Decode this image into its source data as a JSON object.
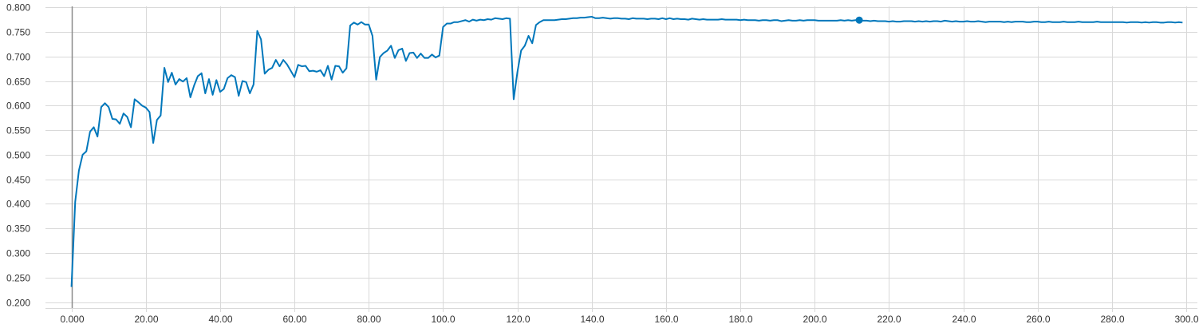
{
  "chart_data": {
    "type": "line",
    "title": "",
    "xlabel": "",
    "ylabel": "",
    "xlim": [
      -7,
      303
    ],
    "ylim": [
      0.188,
      0.802
    ],
    "grid": true,
    "legend": "none",
    "x_ticks": [
      0,
      20,
      40,
      60,
      80,
      100,
      120,
      140,
      160,
      180,
      200,
      220,
      240,
      260,
      280,
      300
    ],
    "x_tick_labels": [
      "0.000",
      "20.00",
      "40.00",
      "60.00",
      "80.00",
      "100.0",
      "120.0",
      "140.0",
      "160.0",
      "180.0",
      "200.0",
      "220.0",
      "240.0",
      "260.0",
      "280.0",
      "300.0"
    ],
    "y_ticks": [
      0.2,
      0.25,
      0.3,
      0.35,
      0.4,
      0.45,
      0.5,
      0.55,
      0.6,
      0.65,
      0.7,
      0.75,
      0.8
    ],
    "y_tick_labels": [
      "0.200",
      "0.250",
      "0.300",
      "0.350",
      "0.400",
      "0.450",
      "0.500",
      "0.550",
      "0.600",
      "0.650",
      "0.700",
      "0.750",
      "0.800"
    ],
    "series": [
      {
        "color": "#0077bb",
        "highlight_point": [
          212,
          0.774
        ],
        "points": [
          [
            0,
            0.231
          ],
          [
            1,
            0.404
          ],
          [
            2,
            0.468
          ],
          [
            3,
            0.5
          ],
          [
            4,
            0.507
          ],
          [
            5,
            0.547
          ],
          [
            6,
            0.556
          ],
          [
            7,
            0.537
          ],
          [
            8,
            0.597
          ],
          [
            9,
            0.605
          ],
          [
            10,
            0.597
          ],
          [
            11,
            0.573
          ],
          [
            12,
            0.572
          ],
          [
            13,
            0.563
          ],
          [
            14,
            0.584
          ],
          [
            15,
            0.577
          ],
          [
            16,
            0.556
          ],
          [
            17,
            0.613
          ],
          [
            18,
            0.607
          ],
          [
            19,
            0.6
          ],
          [
            20,
            0.596
          ],
          [
            21,
            0.587
          ],
          [
            22,
            0.524
          ],
          [
            23,
            0.571
          ],
          [
            24,
            0.58
          ],
          [
            25,
            0.677
          ],
          [
            26,
            0.648
          ],
          [
            27,
            0.667
          ],
          [
            28,
            0.643
          ],
          [
            29,
            0.654
          ],
          [
            30,
            0.649
          ],
          [
            31,
            0.656
          ],
          [
            32,
            0.617
          ],
          [
            33,
            0.641
          ],
          [
            34,
            0.66
          ],
          [
            35,
            0.666
          ],
          [
            36,
            0.625
          ],
          [
            37,
            0.654
          ],
          [
            38,
            0.622
          ],
          [
            39,
            0.652
          ],
          [
            40,
            0.628
          ],
          [
            41,
            0.634
          ],
          [
            42,
            0.656
          ],
          [
            43,
            0.662
          ],
          [
            44,
            0.658
          ],
          [
            45,
            0.62
          ],
          [
            46,
            0.65
          ],
          [
            47,
            0.648
          ],
          [
            48,
            0.625
          ],
          [
            49,
            0.643
          ],
          [
            50,
            0.752
          ],
          [
            51,
            0.735
          ],
          [
            52,
            0.665
          ],
          [
            53,
            0.673
          ],
          [
            54,
            0.677
          ],
          [
            55,
            0.693
          ],
          [
            56,
            0.68
          ],
          [
            57,
            0.693
          ],
          [
            58,
            0.684
          ],
          [
            59,
            0.671
          ],
          [
            60,
            0.658
          ],
          [
            61,
            0.683
          ],
          [
            62,
            0.68
          ],
          [
            63,
            0.681
          ],
          [
            64,
            0.67
          ],
          [
            65,
            0.671
          ],
          [
            66,
            0.669
          ],
          [
            67,
            0.672
          ],
          [
            68,
            0.66
          ],
          [
            69,
            0.681
          ],
          [
            70,
            0.653
          ],
          [
            71,
            0.681
          ],
          [
            72,
            0.68
          ],
          [
            73,
            0.667
          ],
          [
            74,
            0.676
          ],
          [
            75,
            0.763
          ],
          [
            76,
            0.769
          ],
          [
            77,
            0.765
          ],
          [
            78,
            0.77
          ],
          [
            79,
            0.765
          ],
          [
            80,
            0.765
          ],
          [
            81,
            0.742
          ],
          [
            82,
            0.653
          ],
          [
            83,
            0.699
          ],
          [
            84,
            0.707
          ],
          [
            85,
            0.712
          ],
          [
            86,
            0.722
          ],
          [
            87,
            0.697
          ],
          [
            88,
            0.713
          ],
          [
            89,
            0.716
          ],
          [
            90,
            0.691
          ],
          [
            91,
            0.707
          ],
          [
            92,
            0.708
          ],
          [
            93,
            0.697
          ],
          [
            94,
            0.706
          ],
          [
            95,
            0.697
          ],
          [
            96,
            0.697
          ],
          [
            97,
            0.704
          ],
          [
            98,
            0.698
          ],
          [
            99,
            0.702
          ],
          [
            100,
            0.76
          ],
          [
            101,
            0.767
          ],
          [
            102,
            0.767
          ],
          [
            103,
            0.77
          ],
          [
            104,
            0.77
          ],
          [
            105,
            0.772
          ],
          [
            106,
            0.774
          ],
          [
            107,
            0.771
          ],
          [
            108,
            0.775
          ],
          [
            109,
            0.773
          ],
          [
            110,
            0.775
          ],
          [
            111,
            0.774
          ],
          [
            112,
            0.776
          ],
          [
            113,
            0.775
          ],
          [
            114,
            0.778
          ],
          [
            115,
            0.777
          ],
          [
            116,
            0.776
          ],
          [
            117,
            0.778
          ],
          [
            118,
            0.777
          ],
          [
            119,
            0.613
          ],
          [
            120,
            0.668
          ],
          [
            121,
            0.712
          ],
          [
            122,
            0.722
          ],
          [
            123,
            0.742
          ],
          [
            124,
            0.727
          ],
          [
            125,
            0.764
          ],
          [
            126,
            0.77
          ],
          [
            127,
            0.774
          ],
          [
            128,
            0.774
          ],
          [
            129,
            0.774
          ],
          [
            130,
            0.774
          ],
          [
            131,
            0.775
          ],
          [
            132,
            0.776
          ],
          [
            133,
            0.776
          ],
          [
            134,
            0.777
          ],
          [
            135,
            0.778
          ],
          [
            136,
            0.778
          ],
          [
            137,
            0.779
          ],
          [
            138,
            0.779
          ],
          [
            139,
            0.78
          ],
          [
            140,
            0.781
          ],
          [
            141,
            0.778
          ],
          [
            142,
            0.778
          ],
          [
            143,
            0.779
          ],
          [
            144,
            0.778
          ],
          [
            145,
            0.777
          ],
          [
            146,
            0.778
          ],
          [
            147,
            0.778
          ],
          [
            148,
            0.777
          ],
          [
            149,
            0.777
          ],
          [
            150,
            0.776
          ],
          [
            151,
            0.778
          ],
          [
            152,
            0.777
          ],
          [
            153,
            0.777
          ],
          [
            154,
            0.777
          ],
          [
            155,
            0.776
          ],
          [
            156,
            0.777
          ],
          [
            157,
            0.777
          ],
          [
            158,
            0.776
          ],
          [
            159,
            0.778
          ],
          [
            160,
            0.776
          ],
          [
            161,
            0.778
          ],
          [
            162,
            0.776
          ],
          [
            163,
            0.777
          ],
          [
            164,
            0.776
          ],
          [
            165,
            0.776
          ],
          [
            166,
            0.775
          ],
          [
            167,
            0.777
          ],
          [
            168,
            0.776
          ],
          [
            169,
            0.775
          ],
          [
            170,
            0.776
          ],
          [
            171,
            0.775
          ],
          [
            172,
            0.775
          ],
          [
            173,
            0.775
          ],
          [
            174,
            0.775
          ],
          [
            175,
            0.776
          ],
          [
            176,
            0.775
          ],
          [
            177,
            0.775
          ],
          [
            178,
            0.775
          ],
          [
            179,
            0.775
          ],
          [
            180,
            0.774
          ],
          [
            181,
            0.775
          ],
          [
            182,
            0.774
          ],
          [
            183,
            0.774
          ],
          [
            184,
            0.774
          ],
          [
            185,
            0.773
          ],
          [
            186,
            0.774
          ],
          [
            187,
            0.774
          ],
          [
            188,
            0.773
          ],
          [
            189,
            0.774
          ],
          [
            190,
            0.774
          ],
          [
            191,
            0.772
          ],
          [
            192,
            0.773
          ],
          [
            193,
            0.774
          ],
          [
            194,
            0.773
          ],
          [
            195,
            0.773
          ],
          [
            196,
            0.774
          ],
          [
            197,
            0.773
          ],
          [
            198,
            0.774
          ],
          [
            199,
            0.774
          ],
          [
            200,
            0.774
          ],
          [
            201,
            0.773
          ],
          [
            202,
            0.773
          ],
          [
            203,
            0.773
          ],
          [
            204,
            0.773
          ],
          [
            205,
            0.773
          ],
          [
            206,
            0.773
          ],
          [
            207,
            0.774
          ],
          [
            208,
            0.773
          ],
          [
            209,
            0.774
          ],
          [
            210,
            0.773
          ],
          [
            211,
            0.774
          ],
          [
            212,
            0.774
          ],
          [
            213,
            0.773
          ],
          [
            214,
            0.773
          ],
          [
            215,
            0.772
          ],
          [
            216,
            0.773
          ],
          [
            217,
            0.772
          ],
          [
            218,
            0.772
          ],
          [
            219,
            0.772
          ],
          [
            220,
            0.771
          ],
          [
            221,
            0.772
          ],
          [
            222,
            0.771
          ],
          [
            223,
            0.771
          ],
          [
            224,
            0.772
          ],
          [
            225,
            0.772
          ],
          [
            226,
            0.772
          ],
          [
            227,
            0.771
          ],
          [
            228,
            0.772
          ],
          [
            229,
            0.771
          ],
          [
            230,
            0.772
          ],
          [
            231,
            0.771
          ],
          [
            232,
            0.772
          ],
          [
            233,
            0.772
          ],
          [
            234,
            0.771
          ],
          [
            235,
            0.773
          ],
          [
            236,
            0.772
          ],
          [
            237,
            0.771
          ],
          [
            238,
            0.772
          ],
          [
            239,
            0.771
          ],
          [
            240,
            0.771
          ],
          [
            241,
            0.772
          ],
          [
            242,
            0.771
          ],
          [
            243,
            0.771
          ],
          [
            244,
            0.772
          ],
          [
            245,
            0.771
          ],
          [
            246,
            0.77
          ],
          [
            247,
            0.771
          ],
          [
            248,
            0.771
          ],
          [
            249,
            0.771
          ],
          [
            250,
            0.771
          ],
          [
            251,
            0.77
          ],
          [
            252,
            0.771
          ],
          [
            253,
            0.77
          ],
          [
            254,
            0.771
          ],
          [
            255,
            0.771
          ],
          [
            256,
            0.771
          ],
          [
            257,
            0.77
          ],
          [
            258,
            0.77
          ],
          [
            259,
            0.771
          ],
          [
            260,
            0.771
          ],
          [
            261,
            0.77
          ],
          [
            262,
            0.77
          ],
          [
            263,
            0.771
          ],
          [
            264,
            0.77
          ],
          [
            265,
            0.77
          ],
          [
            266,
            0.77
          ],
          [
            267,
            0.771
          ],
          [
            268,
            0.77
          ],
          [
            269,
            0.77
          ],
          [
            270,
            0.77
          ],
          [
            271,
            0.771
          ],
          [
            272,
            0.77
          ],
          [
            273,
            0.77
          ],
          [
            274,
            0.77
          ],
          [
            275,
            0.77
          ],
          [
            276,
            0.771
          ],
          [
            277,
            0.77
          ],
          [
            278,
            0.77
          ],
          [
            279,
            0.77
          ],
          [
            280,
            0.77
          ],
          [
            281,
            0.77
          ],
          [
            282,
            0.77
          ],
          [
            283,
            0.77
          ],
          [
            284,
            0.769
          ],
          [
            285,
            0.77
          ],
          [
            286,
            0.77
          ],
          [
            287,
            0.77
          ],
          [
            288,
            0.769
          ],
          [
            289,
            0.77
          ],
          [
            290,
            0.769
          ],
          [
            291,
            0.77
          ],
          [
            292,
            0.77
          ],
          [
            293,
            0.769
          ],
          [
            294,
            0.769
          ],
          [
            295,
            0.77
          ],
          [
            296,
            0.77
          ],
          [
            297,
            0.769
          ],
          [
            298,
            0.77
          ],
          [
            299,
            0.769
          ]
        ]
      }
    ],
    "colors": {
      "line": "#0077bb",
      "grid": "#d9d9d9",
      "y_axis_line": "#8c8c8c",
      "tick_text": "#333333",
      "background": "#ffffff"
    }
  }
}
